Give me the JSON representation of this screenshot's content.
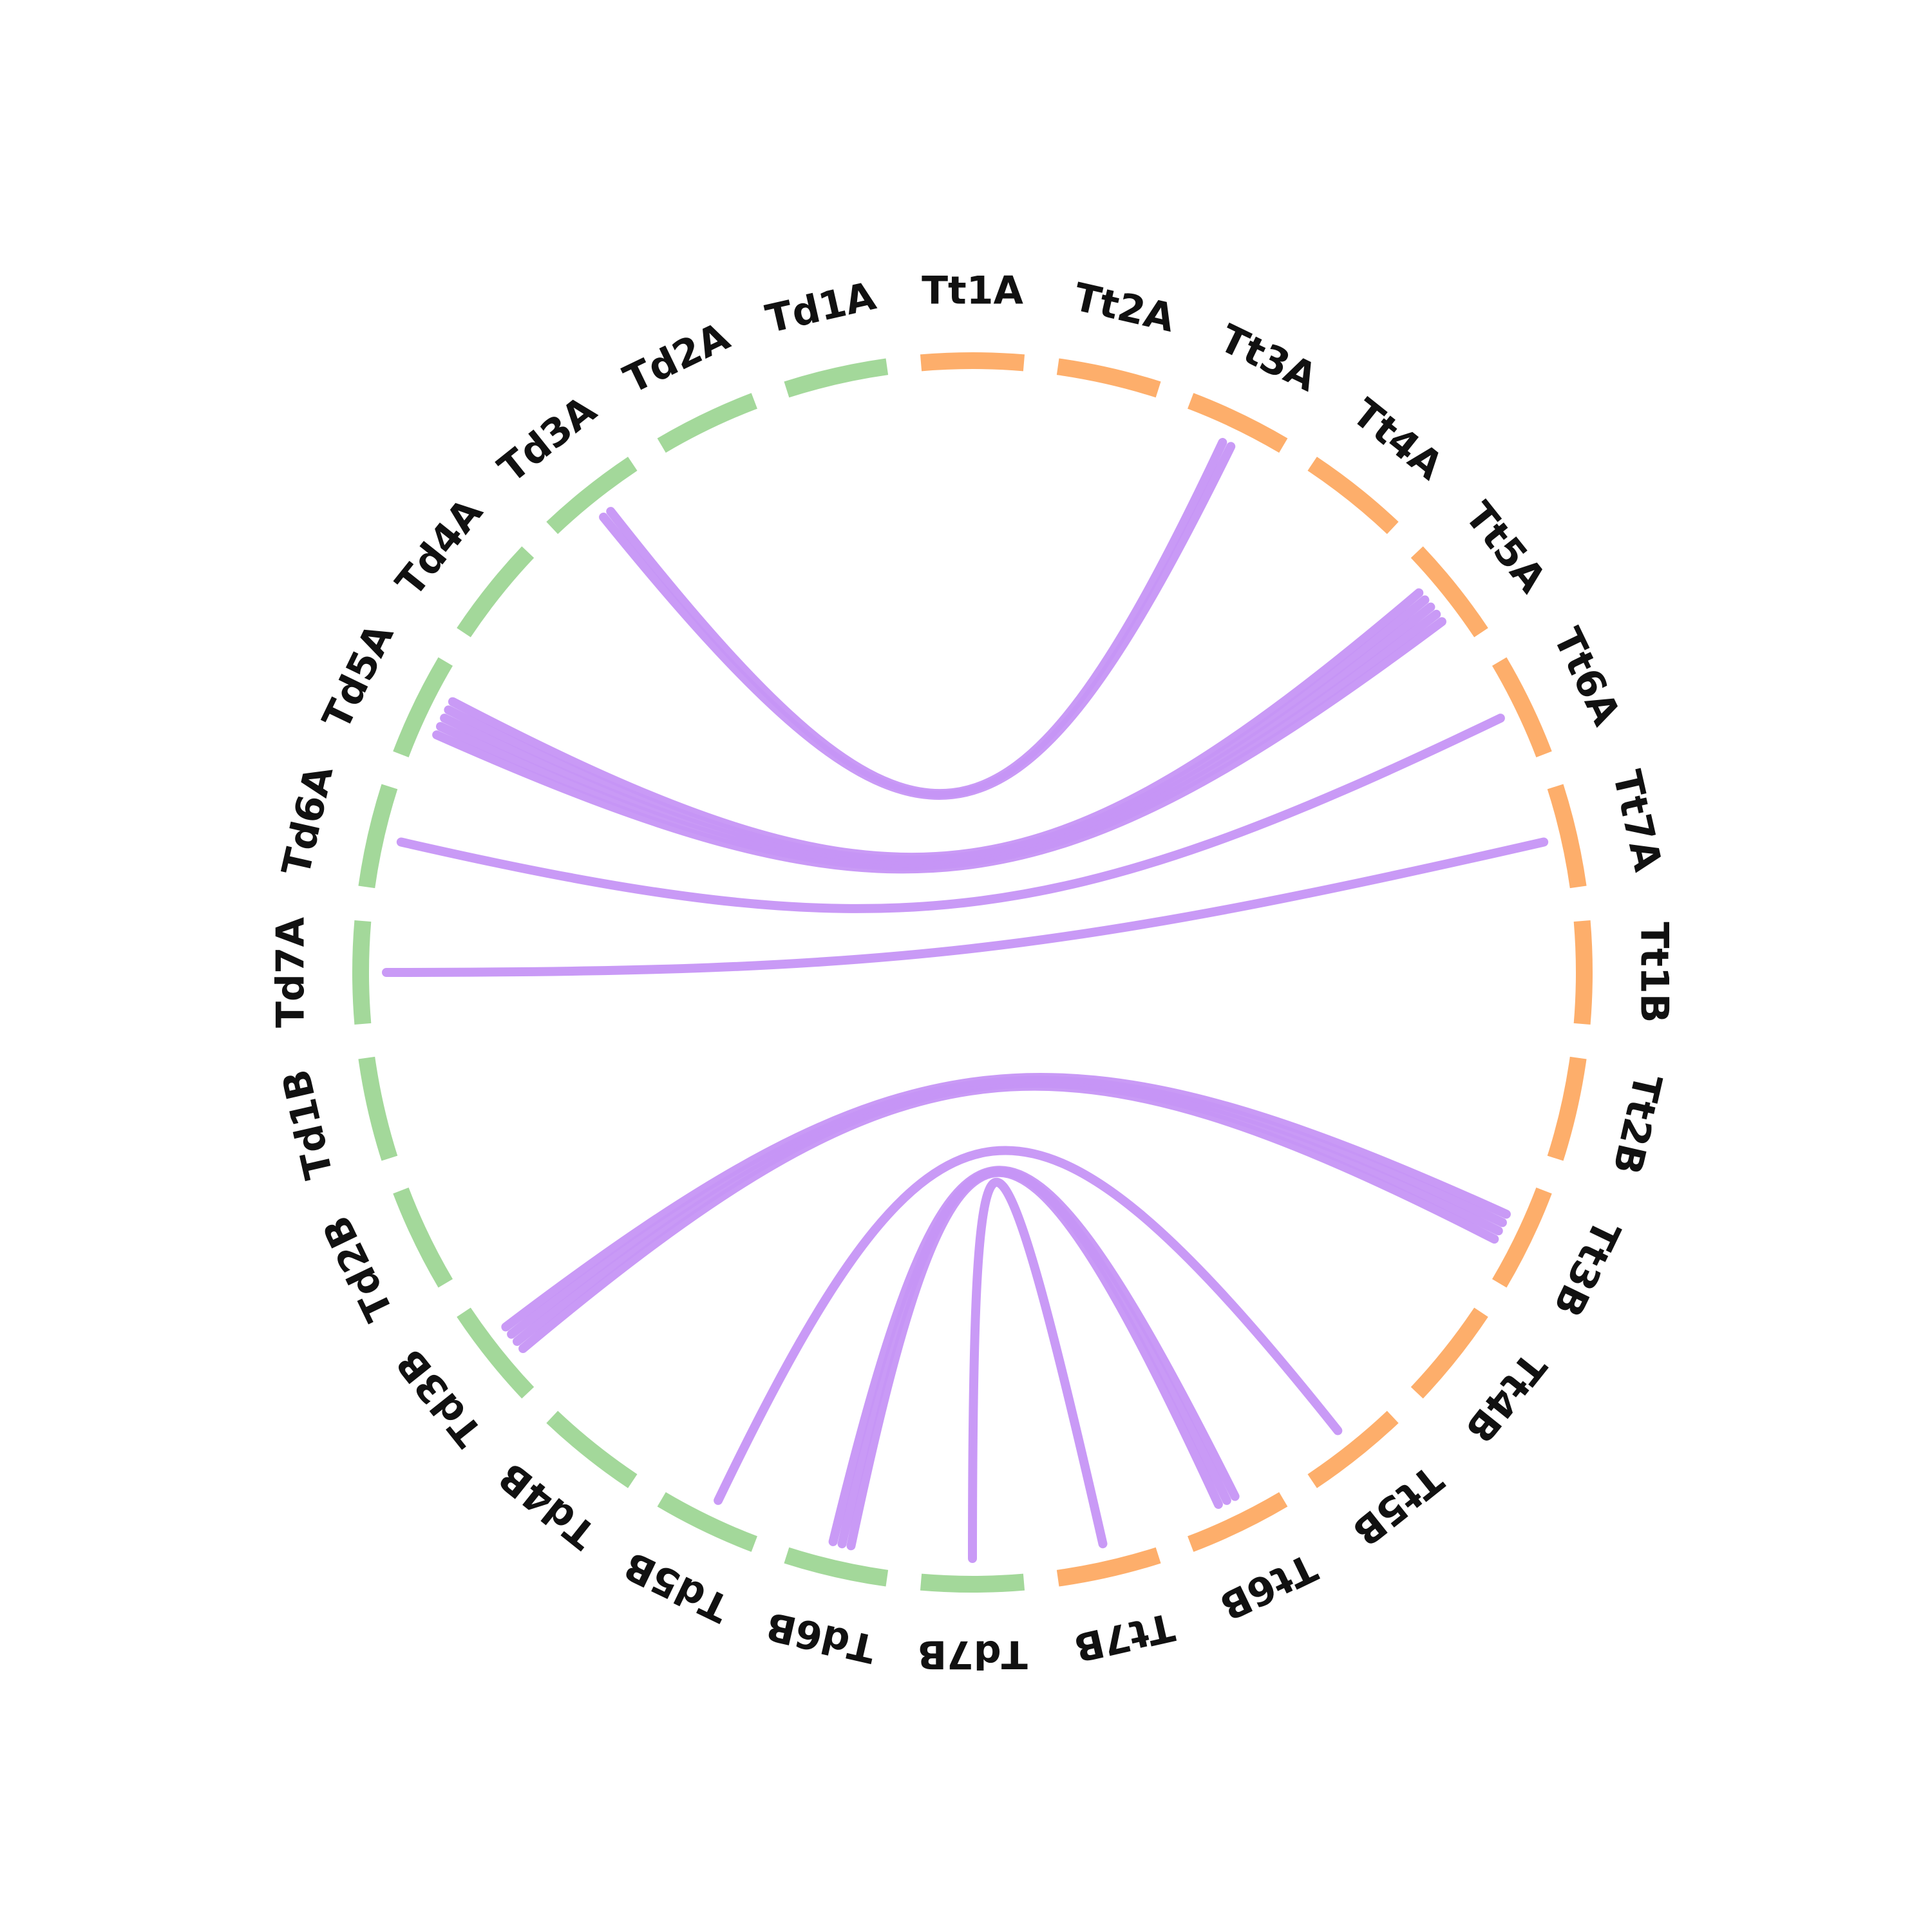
{
  "colors": {
    "td": "#a3d89a",
    "tt": "#fdae6b",
    "link": "#c695f5",
    "label": "#111111"
  },
  "chromosomes": [
    {
      "name": "Td1A",
      "group": "td"
    },
    {
      "name": "Td2A",
      "group": "td"
    },
    {
      "name": "Td3A",
      "group": "td"
    },
    {
      "name": "Td4A",
      "group": "td"
    },
    {
      "name": "Td5A",
      "group": "td"
    },
    {
      "name": "Td6A",
      "group": "td"
    },
    {
      "name": "Td7A",
      "group": "td"
    },
    {
      "name": "Td1B",
      "group": "td"
    },
    {
      "name": "Td2B",
      "group": "td"
    },
    {
      "name": "Td3B",
      "group": "td"
    },
    {
      "name": "Td4B",
      "group": "td"
    },
    {
      "name": "Td5B",
      "group": "td"
    },
    {
      "name": "Td6B",
      "group": "td"
    },
    {
      "name": "Td7B",
      "group": "td"
    },
    {
      "name": "Tt7B",
      "group": "tt"
    },
    {
      "name": "Tt6B",
      "group": "tt"
    },
    {
      "name": "Tt5B",
      "group": "tt"
    },
    {
      "name": "Tt4B",
      "group": "tt"
    },
    {
      "name": "Tt3B",
      "group": "tt"
    },
    {
      "name": "Tt2B",
      "group": "tt"
    },
    {
      "name": "Tt1B",
      "group": "tt"
    },
    {
      "name": "Tt7A",
      "group": "tt"
    },
    {
      "name": "Tt6A",
      "group": "tt"
    },
    {
      "name": "Tt5A",
      "group": "tt"
    },
    {
      "name": "Tt4A",
      "group": "tt"
    },
    {
      "name": "Tt3A",
      "group": "tt"
    },
    {
      "name": "Tt2A",
      "group": "tt"
    },
    {
      "name": "Tt1A",
      "group": "tt"
    }
  ],
  "links": [
    {
      "from": "Td3A",
      "to": "Tt3A",
      "count": 2
    },
    {
      "from": "Td5A",
      "to": "Tt5A",
      "count": 5
    },
    {
      "from": "Td6A",
      "to": "Tt6A",
      "count": 1
    },
    {
      "from": "Td7A",
      "to": "Tt7A",
      "count": 1
    },
    {
      "from": "Td3B",
      "to": "Tt3B",
      "count": 4
    },
    {
      "from": "Td5B",
      "to": "Tt5B",
      "count": 1
    },
    {
      "from": "Td6B",
      "to": "Tt6B",
      "count": 3
    },
    {
      "from": "Td7B",
      "to": "Tt7B",
      "count": 1
    }
  ]
}
